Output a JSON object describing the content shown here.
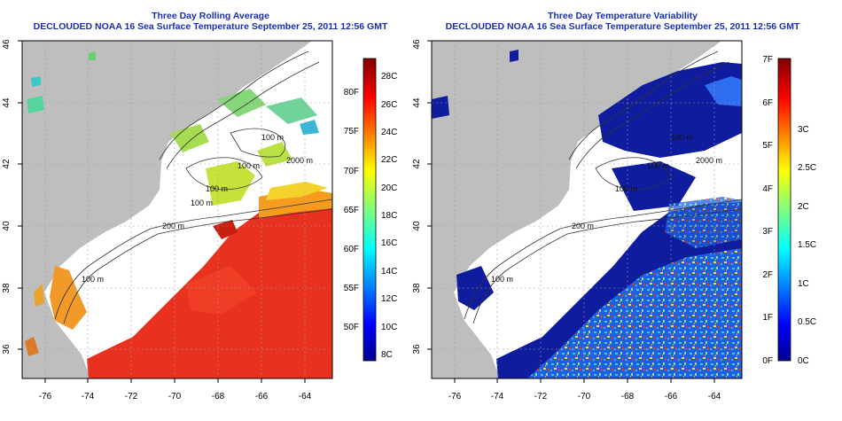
{
  "panels": [
    {
      "title": "Three Day Rolling Average",
      "subtitle": "DECLOUDED NOAA 16 Sea Surface Temperature September 25, 2011 12:56 GMT",
      "x_ticks": [
        "-76",
        "-74",
        "-72",
        "-70",
        "-68",
        "-66",
        "-64"
      ],
      "y_ticks": [
        "36",
        "38",
        "40",
        "42",
        "44",
        "46"
      ],
      "colorbar": {
        "left_labels": [
          "80F",
          "75F",
          "70F",
          "65F",
          "60F",
          "55F",
          "50F"
        ],
        "right_labels": [
          "28C",
          "26C",
          "24C",
          "22C",
          "20C",
          "18C",
          "16C",
          "14C",
          "12C",
          "10C",
          "8C"
        ]
      },
      "contour_labels": [
        "200 m",
        "2000 m",
        "100 m",
        "100 m",
        "100 m",
        "100 m",
        "100 m"
      ]
    },
    {
      "title": "Three Day Temperature Variability",
      "subtitle": "DECLOUDED NOAA 16 Sea Surface Temperature September 25, 2011 12:56 GMT",
      "x_ticks": [
        "-76",
        "-74",
        "-72",
        "-70",
        "-68",
        "-66",
        "-64"
      ],
      "y_ticks": [
        "36",
        "38",
        "40",
        "42",
        "44",
        "46"
      ],
      "colorbar": {
        "left_labels": [
          "7F",
          "6F",
          "5F",
          "4F",
          "3F",
          "2F",
          "1F",
          "0F"
        ],
        "right_labels": [
          "3C",
          "2.5C",
          "2C",
          "1.5C",
          "1C",
          "0.5C",
          "0C"
        ]
      },
      "contour_labels": [
        "200 m",
        "2000 m",
        "100 m",
        "100 m",
        "100 m",
        "100 m"
      ]
    }
  ],
  "colors": {
    "title": "#1a2fb0",
    "land": "#bebebe",
    "cloud": "#ffffff",
    "warm_water": "#e8311f",
    "variability_low": "#101c9e"
  }
}
